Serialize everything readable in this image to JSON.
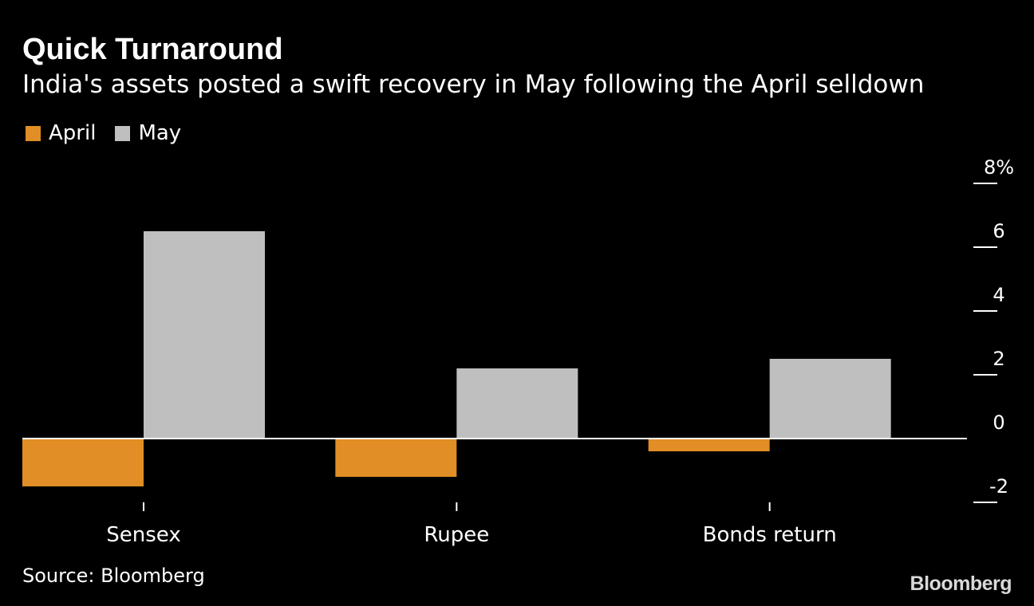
{
  "header": {
    "title": "Quick Turnaround",
    "subtitle": "India's assets posted a swift recovery in May following the April selldown"
  },
  "footer": {
    "source": "Source: Bloomberg",
    "brand": "Bloomberg"
  },
  "colors": {
    "april": "#E08E25",
    "may": "#BFBFBF",
    "background": "#000000",
    "text": "#FFFFFF"
  },
  "chart_data": {
    "type": "bar",
    "categories": [
      "Sensex",
      "Rupee",
      "Bonds return"
    ],
    "series": [
      {
        "name": "April",
        "values": [
          -1.5,
          -1.2,
          -0.4
        ]
      },
      {
        "name": "May",
        "values": [
          6.5,
          2.2,
          2.5
        ]
      }
    ],
    "y_ticks": [
      {
        "value": 8,
        "label": "8%"
      },
      {
        "value": 6,
        "label": "6"
      },
      {
        "value": 4,
        "label": "4"
      },
      {
        "value": 2,
        "label": "2"
      },
      {
        "value": 0,
        "label": "0"
      },
      {
        "value": -2,
        "label": "-2"
      }
    ],
    "ylim": [
      -2,
      8
    ],
    "y_axis_side": "right",
    "grid": false,
    "legend_position": "top-left"
  }
}
